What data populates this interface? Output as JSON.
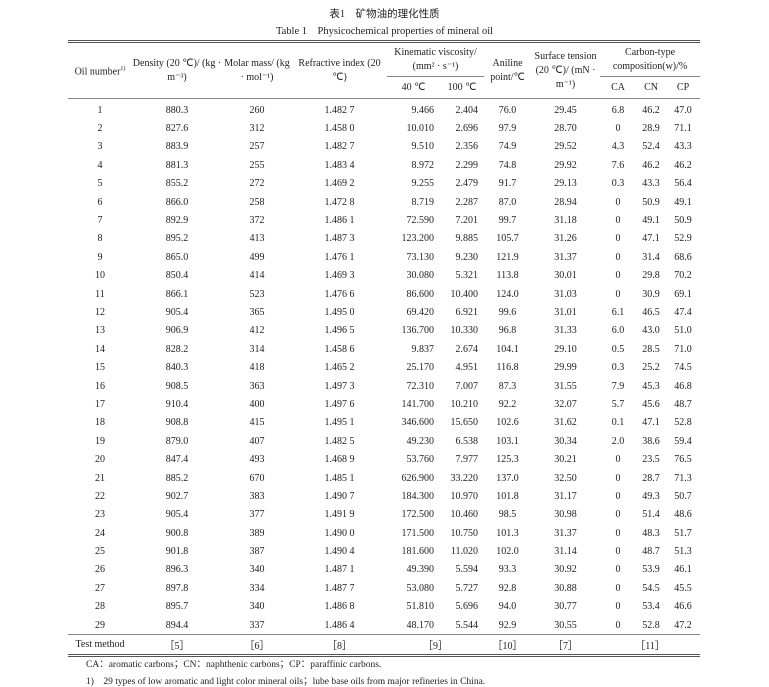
{
  "caption_cn": "表1　矿物油的理化性质",
  "caption_en": "Table 1　Physicochemical properties of mineral oil",
  "headers": {
    "oil_number": "Oil number",
    "oil_number_sup": "1)",
    "density": "Density (20 ℃)/ (kg · m⁻³)",
    "molar_mass": "Molar mass/ (kg · mol⁻¹)",
    "refractive_index": "Refractive index (20 ℃)",
    "viscosity": "Kinematic viscosity/ (mm² · s⁻¹)",
    "visc_40": "40 ℃",
    "visc_100": "100 ℃",
    "aniline": "Aniline point/℃",
    "surface_tension": "Surface tension (20 ℃)/ (mN · m⁻¹)",
    "carbon_type": "Carbon-type composition(w)/%",
    "ca": "CA",
    "cn": "CN",
    "cp": "CP"
  },
  "rows": [
    [
      "1",
      "880.3",
      "260",
      "1.482 7",
      "9.466",
      "2.404",
      "76.0",
      "29.45",
      "6.8",
      "46.2",
      "47.0"
    ],
    [
      "2",
      "827.6",
      "312",
      "1.458 0",
      "10.010",
      "2.696",
      "97.9",
      "28.70",
      "0",
      "28.9",
      "71.1"
    ],
    [
      "3",
      "883.9",
      "257",
      "1.482 7",
      "9.510",
      "2.356",
      "74.9",
      "29.52",
      "4.3",
      "52.4",
      "43.3"
    ],
    [
      "4",
      "881.3",
      "255",
      "1.483 4",
      "8.972",
      "2.299",
      "74.8",
      "29.92",
      "7.6",
      "46.2",
      "46.2"
    ],
    [
      "5",
      "855.2",
      "272",
      "1.469 2",
      "9.255",
      "2.479",
      "91.7",
      "29.13",
      "0.3",
      "43.3",
      "56.4"
    ],
    [
      "6",
      "866.0",
      "258",
      "1.472 8",
      "8.719",
      "2.287",
      "87.0",
      "28.94",
      "0",
      "50.9",
      "49.1"
    ],
    [
      "7",
      "892.9",
      "372",
      "1.486 1",
      "72.590",
      "7.201",
      "99.7",
      "31.18",
      "0",
      "49.1",
      "50.9"
    ],
    [
      "8",
      "895.2",
      "413",
      "1.487 3",
      "123.200",
      "9.885",
      "105.7",
      "31.26",
      "0",
      "47.1",
      "52.9"
    ],
    [
      "9",
      "865.0",
      "499",
      "1.476 1",
      "73.130",
      "9.230",
      "121.9",
      "31.37",
      "0",
      "31.4",
      "68.6"
    ],
    [
      "10",
      "850.4",
      "414",
      "1.469 3",
      "30.080",
      "5.321",
      "113.8",
      "30.01",
      "0",
      "29.8",
      "70.2"
    ],
    [
      "11",
      "866.1",
      "523",
      "1.476 6",
      "86.600",
      "10.400",
      "124.0",
      "31.03",
      "0",
      "30.9",
      "69.1"
    ],
    [
      "12",
      "905.4",
      "365",
      "1.495 0",
      "69.420",
      "6.921",
      "99.6",
      "31.01",
      "6.1",
      "46.5",
      "47.4"
    ],
    [
      "13",
      "906.9",
      "412",
      "1.496 5",
      "136.700",
      "10.330",
      "96.8",
      "31.33",
      "6.0",
      "43.0",
      "51.0"
    ],
    [
      "14",
      "828.2",
      "314",
      "1.458 6",
      "9.837",
      "2.674",
      "104.1",
      "29.10",
      "0.5",
      "28.5",
      "71.0"
    ],
    [
      "15",
      "840.3",
      "418",
      "1.465 2",
      "25.170",
      "4.951",
      "116.8",
      "29.99",
      "0.3",
      "25.2",
      "74.5"
    ],
    [
      "16",
      "908.5",
      "363",
      "1.497 3",
      "72.310",
      "7.007",
      "87.3",
      "31.55",
      "7.9",
      "45.3",
      "46.8"
    ],
    [
      "17",
      "910.4",
      "400",
      "1.497 6",
      "141.700",
      "10.210",
      "92.2",
      "32.07",
      "5.7",
      "45.6",
      "48.7"
    ],
    [
      "18",
      "908.8",
      "415",
      "1.495 1",
      "346.600",
      "15.650",
      "102.6",
      "31.62",
      "0.1",
      "47.1",
      "52.8"
    ],
    [
      "19",
      "879.0",
      "407",
      "1.482 5",
      "49.230",
      "6.538",
      "103.1",
      "30.34",
      "2.0",
      "38.6",
      "59.4"
    ],
    [
      "20",
      "847.4",
      "493",
      "1.468 9",
      "53.760",
      "7.977",
      "125.3",
      "30.21",
      "0",
      "23.5",
      "76.5"
    ],
    [
      "21",
      "885.2",
      "670",
      "1.485 1",
      "626.900",
      "33.220",
      "137.0",
      "32.50",
      "0",
      "28.7",
      "71.3"
    ],
    [
      "22",
      "902.7",
      "383",
      "1.490 7",
      "184.300",
      "10.970",
      "101.8",
      "31.17",
      "0",
      "49.3",
      "50.7"
    ],
    [
      "23",
      "905.4",
      "377",
      "1.491 9",
      "172.500",
      "10.460",
      "98.5",
      "30.98",
      "0",
      "51.4",
      "48.6"
    ],
    [
      "24",
      "900.8",
      "389",
      "1.490 0",
      "171.500",
      "10.750",
      "101.3",
      "31.37",
      "0",
      "48.3",
      "51.7"
    ],
    [
      "25",
      "901.8",
      "387",
      "1.490 4",
      "181.600",
      "11.020",
      "102.0",
      "31.14",
      "0",
      "48.7",
      "51.3"
    ],
    [
      "26",
      "896.3",
      "340",
      "1.487 1",
      "49.390",
      "5.594",
      "93.3",
      "30.92",
      "0",
      "53.9",
      "46.1"
    ],
    [
      "27",
      "897.8",
      "334",
      "1.487 7",
      "53.080",
      "5.727",
      "92.8",
      "30.88",
      "0",
      "54.5",
      "45.5"
    ],
    [
      "28",
      "895.7",
      "340",
      "1.486 8",
      "51.810",
      "5.696",
      "94.0",
      "30.77",
      "0",
      "53.4",
      "46.6"
    ],
    [
      "29",
      "894.4",
      "337",
      "1.486 4",
      "48.170",
      "5.544",
      "92.9",
      "30.55",
      "0",
      "52.8",
      "47.2"
    ]
  ],
  "test_method": {
    "label": "Test method",
    "density": "［5］",
    "molar_mass": "［6］",
    "refractive_index": "［8］",
    "viscosity": "［9］",
    "aniline": "［10］",
    "surface_tension": "［7］",
    "carbon_type": "［11］"
  },
  "notes": [
    "CA：aromatic carbons；CN：naphthenic carbons；CP：paraffinic carbons.",
    "1)　29 types of low aromatic and light color mineral oils；lube base oils from major refineries in China."
  ]
}
